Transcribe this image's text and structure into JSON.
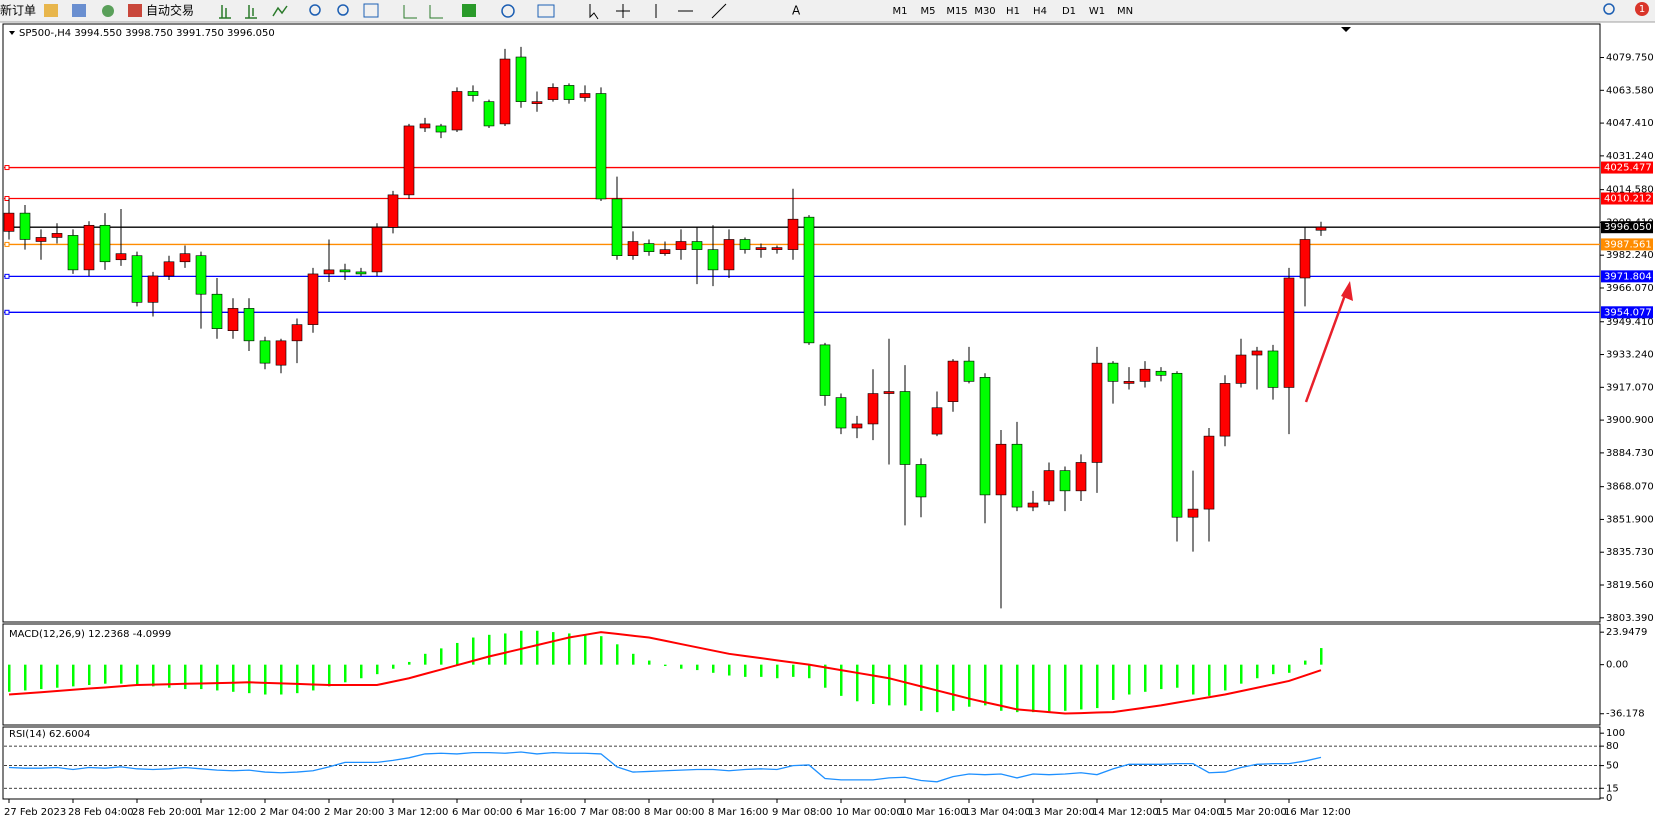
{
  "toolbar": {
    "new_order": "新订单",
    "auto_trading": "自动交易",
    "text_tool": "A",
    "timeframes": [
      "M1",
      "M5",
      "M15",
      "M30",
      "H1",
      "H4",
      "D1",
      "W1",
      "MN"
    ],
    "notifications": 1
  },
  "chart_data": {
    "type": "candlestick",
    "title": "SP500-,H4  3994.550 3998.750 3991.750 3996.050",
    "categories": [
      "27 Feb 2023",
      null,
      null,
      null,
      "28 Feb 04:00",
      null,
      null,
      null,
      "28 Feb 20:00",
      null,
      null,
      null,
      "1 Mar 12:00",
      null,
      null,
      null,
      "2 Mar 04:00",
      null,
      null,
      null,
      "2 Mar 20:00",
      null,
      null,
      null,
      "3 Mar 12:00",
      null,
      null,
      null,
      "6 Mar 00:00",
      null,
      null,
      null,
      "6 Mar 16:00",
      null,
      null,
      null,
      "7 Mar 08:00",
      null,
      null,
      null,
      "8 Mar 00:00",
      null,
      null,
      null,
      "8 Mar 16:00",
      null,
      null,
      null,
      "9 Mar 08:00",
      null,
      null,
      null,
      "10 Mar 00:00",
      null,
      null,
      null,
      "10 Mar 16:00",
      null,
      null,
      null,
      "13 Mar 04:00",
      null,
      null,
      null,
      "13 Mar 20:00",
      null,
      null,
      null,
      "14 Mar 12:00",
      null,
      null,
      null,
      "15 Mar 04:00",
      null,
      null,
      null,
      "15 Mar 20:00",
      null,
      null,
      null,
      "16 Mar 12:00",
      null,
      null
    ],
    "open": [
      3994,
      4003,
      3989,
      3991,
      3992,
      3975,
      3997,
      3980,
      3982,
      3959,
      3972,
      3979,
      3982,
      3963,
      3945,
      3956,
      3940,
      3928,
      3940,
      3948,
      3973,
      3975,
      3974,
      3974,
      3996,
      4012,
      4045,
      4046,
      4044,
      4063,
      4058,
      4047,
      4080,
      4057,
      4059,
      4066,
      4060,
      4062,
      4010,
      3982,
      3988,
      3983,
      3985,
      3989,
      3985,
      3975,
      3990,
      3985,
      3985,
      3985,
      4001,
      3938,
      3912,
      3897,
      3899,
      3914,
      3915,
      3879,
      3894,
      3910,
      3930,
      3922,
      3864,
      3889,
      3858,
      3861,
      3876,
      3866,
      3880,
      3929,
      3919,
      3920,
      3925,
      3924,
      3853,
      3857,
      3893,
      3919,
      3933,
      3935,
      3917,
      3971,
      3994.55
    ],
    "high": [
      4010,
      4007,
      3995,
      3998,
      3995,
      3999,
      4003,
      4005,
      3984,
      3974,
      3982,
      3987,
      3984,
      3971,
      3961,
      3961,
      3942,
      3941,
      3951,
      3976,
      3990,
      3978,
      3976,
      3998,
      4014,
      4047,
      4050,
      4047,
      4065,
      4066,
      4059,
      4084,
      4085,
      4063,
      4067,
      4067,
      4066,
      4065,
      4021,
      3994,
      3990,
      3989,
      3995,
      3996,
      3997,
      3995,
      3991,
      3988,
      3987,
      4015,
      4002,
      3939,
      3914,
      3903,
      3926,
      3941,
      3928,
      3882,
      3915,
      3931,
      3937,
      3924,
      3896,
      3900,
      3866,
      3880,
      3878,
      3884,
      3937,
      3930,
      3927,
      3930,
      3927,
      3925,
      3876,
      3897,
      3923,
      3941,
      3937,
      3938,
      3976,
      3996,
      3998.75
    ],
    "low": [
      3990,
      3985,
      3980,
      3988,
      3973,
      3972,
      3975,
      3977,
      3957,
      3952,
      3970,
      3976,
      3946,
      3941,
      3941,
      3935,
      3926,
      3924,
      3929,
      3944,
      3969,
      3970,
      3972,
      3972,
      3993,
      4010,
      4043,
      4040,
      4043,
      4058,
      4045,
      4046,
      4055,
      4053,
      4058,
      4057,
      4058,
      4009,
      3980,
      3980,
      3982,
      3982,
      3980,
      3968,
      3967,
      3971,
      3983,
      3981,
      3983,
      3980,
      3938,
      3908,
      3894,
      3892,
      3891,
      3879,
      3849,
      3853,
      3893,
      3905,
      3919,
      3850,
      3808,
      3856,
      3856,
      3859,
      3856,
      3861,
      3865,
      3909,
      3916,
      3917,
      3920,
      3841,
      3836,
      3841,
      3888,
      3917,
      3916,
      3911,
      3894,
      3957,
      3991.75
    ],
    "close": [
      4003,
      3990,
      3991,
      3993,
      3975,
      3997,
      3979,
      3983,
      3959,
      3972,
      3979,
      3983,
      3963,
      3946,
      3956,
      3940,
      3929,
      3940,
      3948,
      3973,
      3975,
      3974,
      3973,
      3996,
      4012,
      4046,
      4047,
      4043,
      4063,
      4061,
      4046,
      4079,
      4058,
      4058,
      4065,
      4059,
      4062,
      4010,
      3982,
      3989,
      3984,
      3985,
      3989,
      3985,
      3975,
      3990,
      3985,
      3986,
      3986,
      4000,
      3939,
      3913,
      3897,
      3899,
      3914,
      3915,
      3879,
      3863,
      3907,
      3930,
      3920,
      3864,
      3889,
      3858,
      3860,
      3876,
      3866,
      3880,
      3929,
      3920,
      3920,
      3926,
      3923,
      3853,
      3857,
      3893,
      3919,
      3933,
      3935,
      3917,
      3971,
      3990,
      3996.05
    ],
    "up_color": "#ff0000",
    "down_color": "#00ff00",
    "ylim": [
      3801.8,
      4095.3
    ],
    "yticks": [
      {
        "value": 4079.75,
        "label": "4079.750"
      },
      {
        "value": 4063.58,
        "label": "4063.580"
      },
      {
        "value": 4047.41,
        "label": "4047.410"
      },
      {
        "value": 4031.24,
        "label": "4031.240"
      },
      {
        "value": 4014.58,
        "label": "4014.580"
      },
      {
        "value": 3998.41,
        "label": "3998.410"
      },
      {
        "value": 3982.24,
        "label": "3982.240"
      },
      {
        "value": 3966.07,
        "label": "3966.070"
      },
      {
        "value": 3949.41,
        "label": "3949.410"
      },
      {
        "value": 3933.24,
        "label": "3933.240"
      },
      {
        "value": 3917.07,
        "label": "3917.070"
      },
      {
        "value": 3900.9,
        "label": "3900.900"
      },
      {
        "value": 3884.73,
        "label": "3884.730"
      },
      {
        "value": 3868.07,
        "label": "3868.070"
      },
      {
        "value": 3851.9,
        "label": "3851.900"
      },
      {
        "value": 3835.73,
        "label": "3835.730"
      },
      {
        "value": 3819.56,
        "label": "3819.560"
      },
      {
        "value": 3803.39,
        "label": "3803.390"
      }
    ],
    "levels": [
      {
        "value": 4025.477,
        "color": "#ff0000"
      },
      {
        "value": 4010.212,
        "color": "#ff0000"
      },
      {
        "value": 3996.05,
        "label": "3996.050",
        "color": "#000000"
      },
      {
        "value": 3987.561,
        "color": "#ff8c00"
      },
      {
        "value": 3971.804,
        "color": "#0000ff"
      },
      {
        "value": 3954.077,
        "color": "#0000ff"
      }
    ],
    "macd": {
      "title": "MACD(12,26,9) 12.2368 -4.0999",
      "ylim": [
        -43,
        28.5
      ],
      "yticks": [
        23.9479,
        {
          "value": 0,
          "label": "0.00"
        },
        -36.178
      ],
      "histogram": {
        "color": "#00ff00",
        "values": [
          -20,
          -19,
          -18,
          -17,
          -16,
          -15,
          -14,
          -14,
          -15,
          -16,
          -17,
          -18,
          -18,
          -19,
          -20,
          -21,
          -22,
          -22,
          -21,
          -19,
          -16,
          -13,
          -10,
          -7,
          -3,
          2,
          8,
          12,
          16,
          20,
          22,
          23,
          25,
          25,
          24,
          23,
          22,
          21,
          15,
          8,
          3,
          -1,
          -3,
          -4,
          -6,
          -8,
          -9,
          -9,
          -10,
          -9,
          -10,
          -17,
          -23,
          -27,
          -29,
          -30,
          -30,
          -34,
          -35,
          -34,
          -31,
          -30,
          -34,
          -35,
          -35,
          -35,
          -34,
          -33,
          -32,
          -26,
          -22,
          -20,
          -18,
          -17,
          -22,
          -23,
          -19,
          -14,
          -10,
          -7,
          -6,
          3,
          12.2368
        ]
      },
      "signal": {
        "color": "#ff0000",
        "values": [
          -22,
          -21.2,
          -20.3,
          -19.4,
          -18.5,
          -17.6,
          -16.8,
          -15.9,
          -15,
          -14.7,
          -14.4,
          -14.1,
          -13.9,
          -13.6,
          -13.3,
          -13,
          -13.4,
          -13.8,
          -14.2,
          -14.6,
          -15,
          -15,
          -15,
          -15,
          -12.5,
          -10,
          -6.8,
          -3.6,
          -0.4,
          2.8,
          6,
          8.8,
          11.6,
          14.4,
          17.2,
          20,
          22,
          24,
          22.7,
          21.3,
          20,
          17.6,
          15.2,
          12.8,
          10.4,
          8,
          6.4,
          4.8,
          3.2,
          1.6,
          0,
          -2,
          -4,
          -6,
          -8,
          -10,
          -13,
          -16,
          -19,
          -22,
          -25,
          -27.7,
          -30.3,
          -33,
          -34,
          -35,
          -36,
          -35.7,
          -35.3,
          -35,
          -33.3,
          -31.7,
          -30,
          -28,
          -26,
          -24,
          -22,
          -19.5,
          -17,
          -14.5,
          -12,
          -8,
          -4.0999
        ]
      }
    },
    "rsi": {
      "title": "RSI(14) 62.6004",
      "ylim": [
        0,
        108
      ],
      "yticks": [
        100,
        80,
        50,
        15,
        0
      ],
      "levels": [
        80,
        50,
        15
      ],
      "color": "#1e90ff",
      "values": [
        47,
        46,
        46,
        47,
        44,
        47,
        46,
        48,
        45,
        44,
        45,
        47,
        45,
        43,
        42,
        43,
        40,
        39,
        40,
        42,
        48,
        55,
        55,
        55,
        58,
        62,
        68,
        69,
        68,
        70,
        70,
        69,
        71,
        68,
        70,
        69,
        69,
        68,
        48,
        40,
        41,
        42,
        43,
        44,
        44,
        42,
        44,
        45,
        44,
        50,
        51,
        30,
        28,
        28,
        28,
        31,
        32,
        27,
        25,
        33,
        37,
        36,
        37,
        31,
        37,
        36,
        37,
        39,
        36,
        45,
        52,
        52,
        52,
        53,
        53,
        39,
        40,
        47,
        52,
        53,
        53,
        57,
        62.6004
      ]
    }
  }
}
